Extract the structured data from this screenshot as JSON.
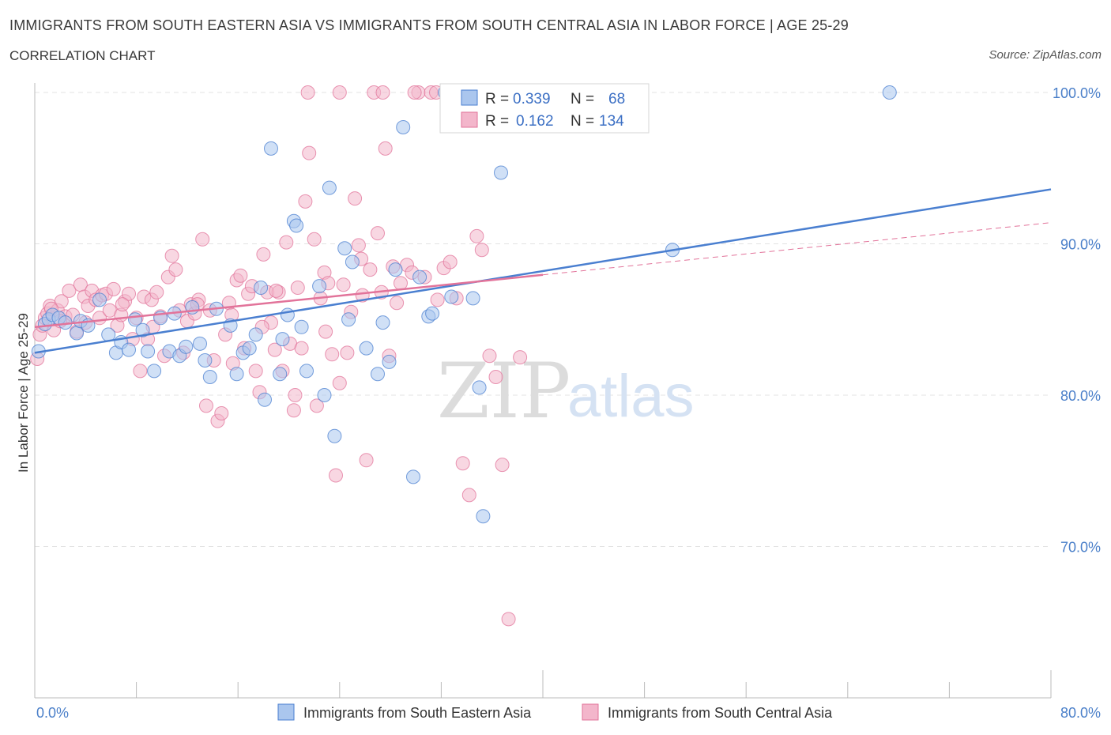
{
  "header": {
    "title": "IMMIGRANTS FROM SOUTH EASTERN ASIA VS IMMIGRANTS FROM SOUTH CENTRAL ASIA IN LABOR FORCE | AGE 25-29",
    "subtitle": "CORRELATION CHART",
    "source": "Source: ZipAtlas.com"
  },
  "watermark": {
    "zip": "ZIP",
    "atlas": "atlas"
  },
  "legend": {
    "rows": [
      {
        "r_label": "R =",
        "r_value": "0.339",
        "n_label": "N =",
        "n_value": "68"
      },
      {
        "r_label": "R =",
        "r_value": "0.162",
        "n_label": "N =",
        "n_value": "134"
      }
    ]
  },
  "colors": {
    "blue": "#4a7fd0",
    "blue_fill": "#aac6ee",
    "pink": "#e2739a",
    "pink_fill": "#f3b6cb",
    "grid": "#e3e3e3",
    "tick_text": "#4a7fc9"
  },
  "chart_data": {
    "type": "scatter",
    "title": "IMMIGRANTS FROM SOUTH EASTERN ASIA VS IMMIGRANTS FROM SOUTH CENTRAL ASIA IN LABOR FORCE | AGE 25-29",
    "xlabel": "",
    "ylabel": "In Labor Force | Age 25-29",
    "xlim": [
      0,
      80
    ],
    "ylim": [
      60,
      100
    ],
    "x_tick_labels": [
      "0.0%",
      "80.0%"
    ],
    "y_ticks": [
      70,
      80,
      90,
      100
    ],
    "y_tick_labels": [
      "70.0%",
      "80.0%",
      "90.0%",
      "100.0%"
    ],
    "grid": true,
    "legend_placement": "top-center",
    "series": [
      {
        "name": "Immigrants from South Eastern Asia",
        "color": "#4a7fd0",
        "r": 0.339,
        "n": 68,
        "trend": {
          "x": [
            0,
            80
          ],
          "y": [
            82.8,
            93.6
          ]
        },
        "points": [
          [
            0.3,
            82.9
          ],
          [
            0.8,
            84.7
          ],
          [
            1.1,
            85.0
          ],
          [
            1.4,
            85.3
          ],
          [
            1.9,
            85.1
          ],
          [
            2.4,
            84.8
          ],
          [
            3.3,
            84.1
          ],
          [
            3.6,
            84.9
          ],
          [
            4.2,
            84.6
          ],
          [
            5.1,
            86.3
          ],
          [
            5.8,
            84.0
          ],
          [
            6.4,
            82.8
          ],
          [
            6.8,
            83.5
          ],
          [
            7.4,
            83.0
          ],
          [
            7.9,
            85.0
          ],
          [
            8.5,
            84.3
          ],
          [
            8.9,
            82.9
          ],
          [
            9.4,
            81.6
          ],
          [
            9.9,
            85.1
          ],
          [
            10.6,
            82.9
          ],
          [
            11.0,
            85.4
          ],
          [
            11.4,
            82.6
          ],
          [
            11.9,
            83.2
          ],
          [
            12.4,
            85.8
          ],
          [
            13.0,
            83.4
          ],
          [
            13.4,
            82.3
          ],
          [
            13.8,
            81.2
          ],
          [
            14.3,
            85.7
          ],
          [
            15.4,
            84.6
          ],
          [
            15.9,
            81.4
          ],
          [
            16.4,
            82.8
          ],
          [
            16.9,
            83.1
          ],
          [
            17.4,
            84.0
          ],
          [
            17.8,
            87.1
          ],
          [
            18.1,
            79.7
          ],
          [
            18.6,
            96.3
          ],
          [
            19.3,
            81.4
          ],
          [
            19.5,
            83.7
          ],
          [
            19.9,
            85.3
          ],
          [
            20.4,
            91.5
          ],
          [
            20.6,
            91.2
          ],
          [
            21.0,
            84.5
          ],
          [
            21.4,
            81.6
          ],
          [
            22.4,
            87.2
          ],
          [
            22.8,
            80.0
          ],
          [
            23.2,
            93.7
          ],
          [
            23.6,
            77.3
          ],
          [
            24.4,
            89.7
          ],
          [
            24.7,
            85.0
          ],
          [
            25.0,
            88.8
          ],
          [
            26.1,
            83.1
          ],
          [
            27.0,
            81.4
          ],
          [
            27.4,
            84.8
          ],
          [
            27.9,
            82.2
          ],
          [
            28.4,
            88.3
          ],
          [
            29.0,
            97.7
          ],
          [
            29.8,
            74.6
          ],
          [
            30.3,
            87.8
          ],
          [
            31.0,
            85.2
          ],
          [
            31.3,
            85.4
          ],
          [
            32.3,
            100.0
          ],
          [
            32.8,
            86.5
          ],
          [
            34.5,
            86.4
          ],
          [
            35.0,
            80.5
          ],
          [
            35.3,
            72.0
          ],
          [
            36.7,
            94.7
          ],
          [
            50.2,
            89.6
          ],
          [
            67.3,
            100.0
          ]
        ]
      },
      {
        "name": "Immigrants from South Central Asia",
        "color": "#e2739a",
        "r": 0.162,
        "n": 134,
        "trend": {
          "x": [
            0,
            80
          ],
          "y": [
            84.5,
            91.4
          ]
        },
        "trend_solid_end_x": 40,
        "points": [
          [
            0.2,
            82.4
          ],
          [
            0.4,
            84.0
          ],
          [
            0.6,
            84.6
          ],
          [
            0.8,
            85.1
          ],
          [
            1.0,
            85.4
          ],
          [
            1.2,
            85.9
          ],
          [
            1.5,
            84.3
          ],
          [
            1.8,
            85.6
          ],
          [
            2.1,
            86.2
          ],
          [
            2.4,
            85.2
          ],
          [
            2.7,
            86.9
          ],
          [
            3.0,
            85.3
          ],
          [
            3.3,
            84.2
          ],
          [
            3.6,
            87.3
          ],
          [
            3.9,
            86.5
          ],
          [
            4.2,
            85.9
          ],
          [
            4.5,
            86.9
          ],
          [
            4.8,
            86.3
          ],
          [
            5.1,
            85.1
          ],
          [
            5.3,
            86.6
          ],
          [
            5.6,
            86.7
          ],
          [
            5.9,
            85.6
          ],
          [
            6.2,
            87.0
          ],
          [
            6.5,
            84.6
          ],
          [
            6.8,
            85.3
          ],
          [
            7.1,
            86.2
          ],
          [
            7.4,
            86.7
          ],
          [
            7.7,
            83.7
          ],
          [
            8.0,
            85.1
          ],
          [
            8.3,
            81.6
          ],
          [
            8.6,
            86.5
          ],
          [
            8.9,
            83.7
          ],
          [
            9.2,
            86.3
          ],
          [
            9.6,
            86.8
          ],
          [
            9.9,
            85.2
          ],
          [
            10.2,
            82.6
          ],
          [
            10.5,
            87.8
          ],
          [
            10.8,
            89.2
          ],
          [
            11.1,
            88.3
          ],
          [
            11.4,
            85.6
          ],
          [
            11.7,
            82.8
          ],
          [
            12.0,
            84.9
          ],
          [
            12.3,
            86.0
          ],
          [
            12.6,
            85.4
          ],
          [
            12.9,
            86.3
          ],
          [
            13.2,
            90.3
          ],
          [
            13.5,
            79.3
          ],
          [
            13.8,
            85.6
          ],
          [
            14.1,
            82.3
          ],
          [
            14.4,
            78.3
          ],
          [
            14.7,
            78.8
          ],
          [
            15.0,
            84.0
          ],
          [
            15.3,
            86.1
          ],
          [
            15.6,
            82.1
          ],
          [
            15.9,
            87.6
          ],
          [
            16.2,
            87.9
          ],
          [
            16.5,
            83.1
          ],
          [
            16.8,
            86.7
          ],
          [
            17.1,
            87.2
          ],
          [
            17.4,
            81.6
          ],
          [
            17.7,
            80.2
          ],
          [
            18.0,
            89.3
          ],
          [
            18.3,
            86.8
          ],
          [
            18.6,
            84.8
          ],
          [
            18.9,
            83.0
          ],
          [
            19.2,
            86.8
          ],
          [
            19.5,
            81.6
          ],
          [
            19.8,
            90.1
          ],
          [
            20.1,
            83.4
          ],
          [
            20.4,
            79.0
          ],
          [
            20.7,
            87.1
          ],
          [
            21.0,
            83.1
          ],
          [
            21.3,
            92.8
          ],
          [
            21.6,
            96.0
          ],
          [
            22.0,
            90.3
          ],
          [
            22.2,
            79.3
          ],
          [
            22.5,
            86.4
          ],
          [
            22.8,
            88.1
          ],
          [
            23.1,
            87.4
          ],
          [
            23.4,
            82.7
          ],
          [
            23.7,
            74.7
          ],
          [
            24.0,
            80.8
          ],
          [
            24.3,
            87.3
          ],
          [
            24.6,
            82.8
          ],
          [
            24.9,
            85.5
          ],
          [
            25.2,
            93.0
          ],
          [
            25.5,
            89.9
          ],
          [
            25.8,
            86.6
          ],
          [
            26.1,
            75.7
          ],
          [
            26.4,
            88.3
          ],
          [
            26.7,
            100.0
          ],
          [
            27.0,
            90.7
          ],
          [
            27.3,
            86.8
          ],
          [
            27.6,
            96.3
          ],
          [
            27.9,
            82.6
          ],
          [
            28.2,
            88.5
          ],
          [
            28.5,
            86.1
          ],
          [
            28.8,
            87.4
          ],
          [
            29.3,
            88.6
          ],
          [
            29.7,
            88.1
          ],
          [
            30.2,
            100.0
          ],
          [
            30.7,
            87.8
          ],
          [
            31.2,
            100.0
          ],
          [
            31.7,
            86.3
          ],
          [
            32.2,
            88.4
          ],
          [
            32.7,
            88.8
          ],
          [
            33.2,
            86.4
          ],
          [
            33.7,
            75.5
          ],
          [
            34.2,
            73.4
          ],
          [
            34.8,
            90.5
          ],
          [
            35.2,
            89.6
          ],
          [
            35.8,
            82.6
          ],
          [
            36.3,
            81.2
          ],
          [
            36.8,
            75.4
          ],
          [
            37.3,
            65.2
          ],
          [
            38.0,
            100.0
          ],
          [
            24.0,
            100.0
          ],
          [
            21.5,
            100.0
          ],
          [
            27.4,
            100.0
          ],
          [
            22.9,
            84.2
          ],
          [
            19.0,
            86.9
          ],
          [
            20.5,
            80.0
          ],
          [
            12.8,
            86.0
          ],
          [
            9.3,
            84.5
          ],
          [
            6.9,
            86.0
          ],
          [
            4.0,
            84.8
          ],
          [
            2.0,
            84.9
          ],
          [
            1.3,
            85.7
          ],
          [
            31.6,
            100.0
          ],
          [
            38.2,
            82.5
          ],
          [
            25.7,
            89.0
          ],
          [
            29.9,
            100.0
          ],
          [
            17.9,
            84.5
          ],
          [
            15.5,
            85.3
          ]
        ]
      }
    ]
  }
}
